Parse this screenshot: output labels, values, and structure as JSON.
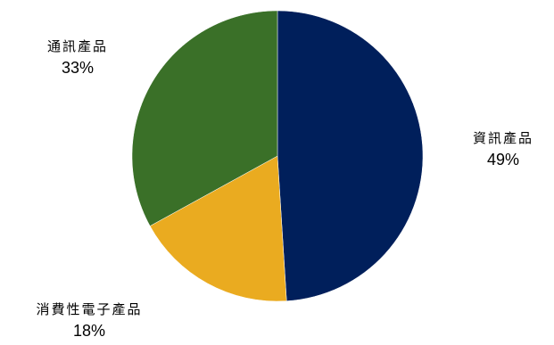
{
  "chart_data": {
    "type": "pie",
    "title": "",
    "slices": [
      {
        "label": "資訊產品",
        "value": 49,
        "display": "49%",
        "color": "#001F5B"
      },
      {
        "label": "消費性電子產品",
        "value": 18,
        "display": "18%",
        "color": "#EAAB20"
      },
      {
        "label": "通訊產品",
        "value": 33,
        "display": "33%",
        "color": "#3A7028"
      }
    ],
    "start_angle": "12 o'clock",
    "direction": "clockwise",
    "legend": "none"
  }
}
